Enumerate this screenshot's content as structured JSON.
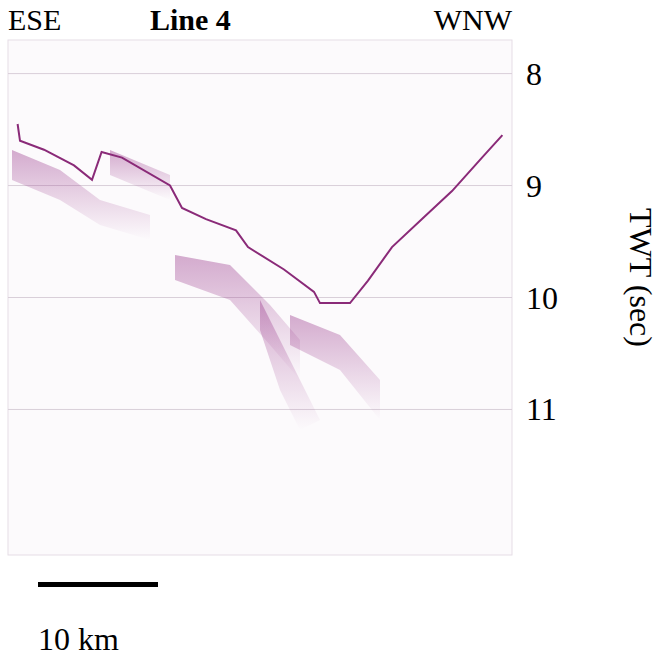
{
  "chart_data": {
    "type": "line",
    "title": "Line 4",
    "left_label": "ESE",
    "right_label": "WNW",
    "y_label": "TWT (sec)",
    "ylim": [
      7.7,
      12.3
    ],
    "yticks": [
      8,
      9,
      10,
      11
    ],
    "xlim": [
      0,
      42
    ],
    "grid": true,
    "tick_labels": "y",
    "scale_bar": {
      "length": 10,
      "label": "10 km"
    },
    "x": [
      0.8,
      1.0,
      3.0,
      5.5,
      7.0,
      7.8,
      9.5,
      13.5,
      14.5,
      16.5,
      19,
      20,
      23,
      25.5,
      26,
      28.5,
      30,
      32,
      34.5,
      37,
      39.5,
      41.2
    ],
    "series": [
      {
        "color": "#8a2a78",
        "line_style": "solid",
        "values": [
          8.45,
          8.6,
          8.68,
          8.82,
          8.95,
          8.7,
          8.75,
          9.0,
          9.2,
          9.3,
          9.4,
          9.55,
          9.75,
          9.95,
          10.05,
          10.05,
          9.85,
          9.55,
          9.3,
          9.05,
          8.75,
          8.55
        ]
      }
    ]
  }
}
